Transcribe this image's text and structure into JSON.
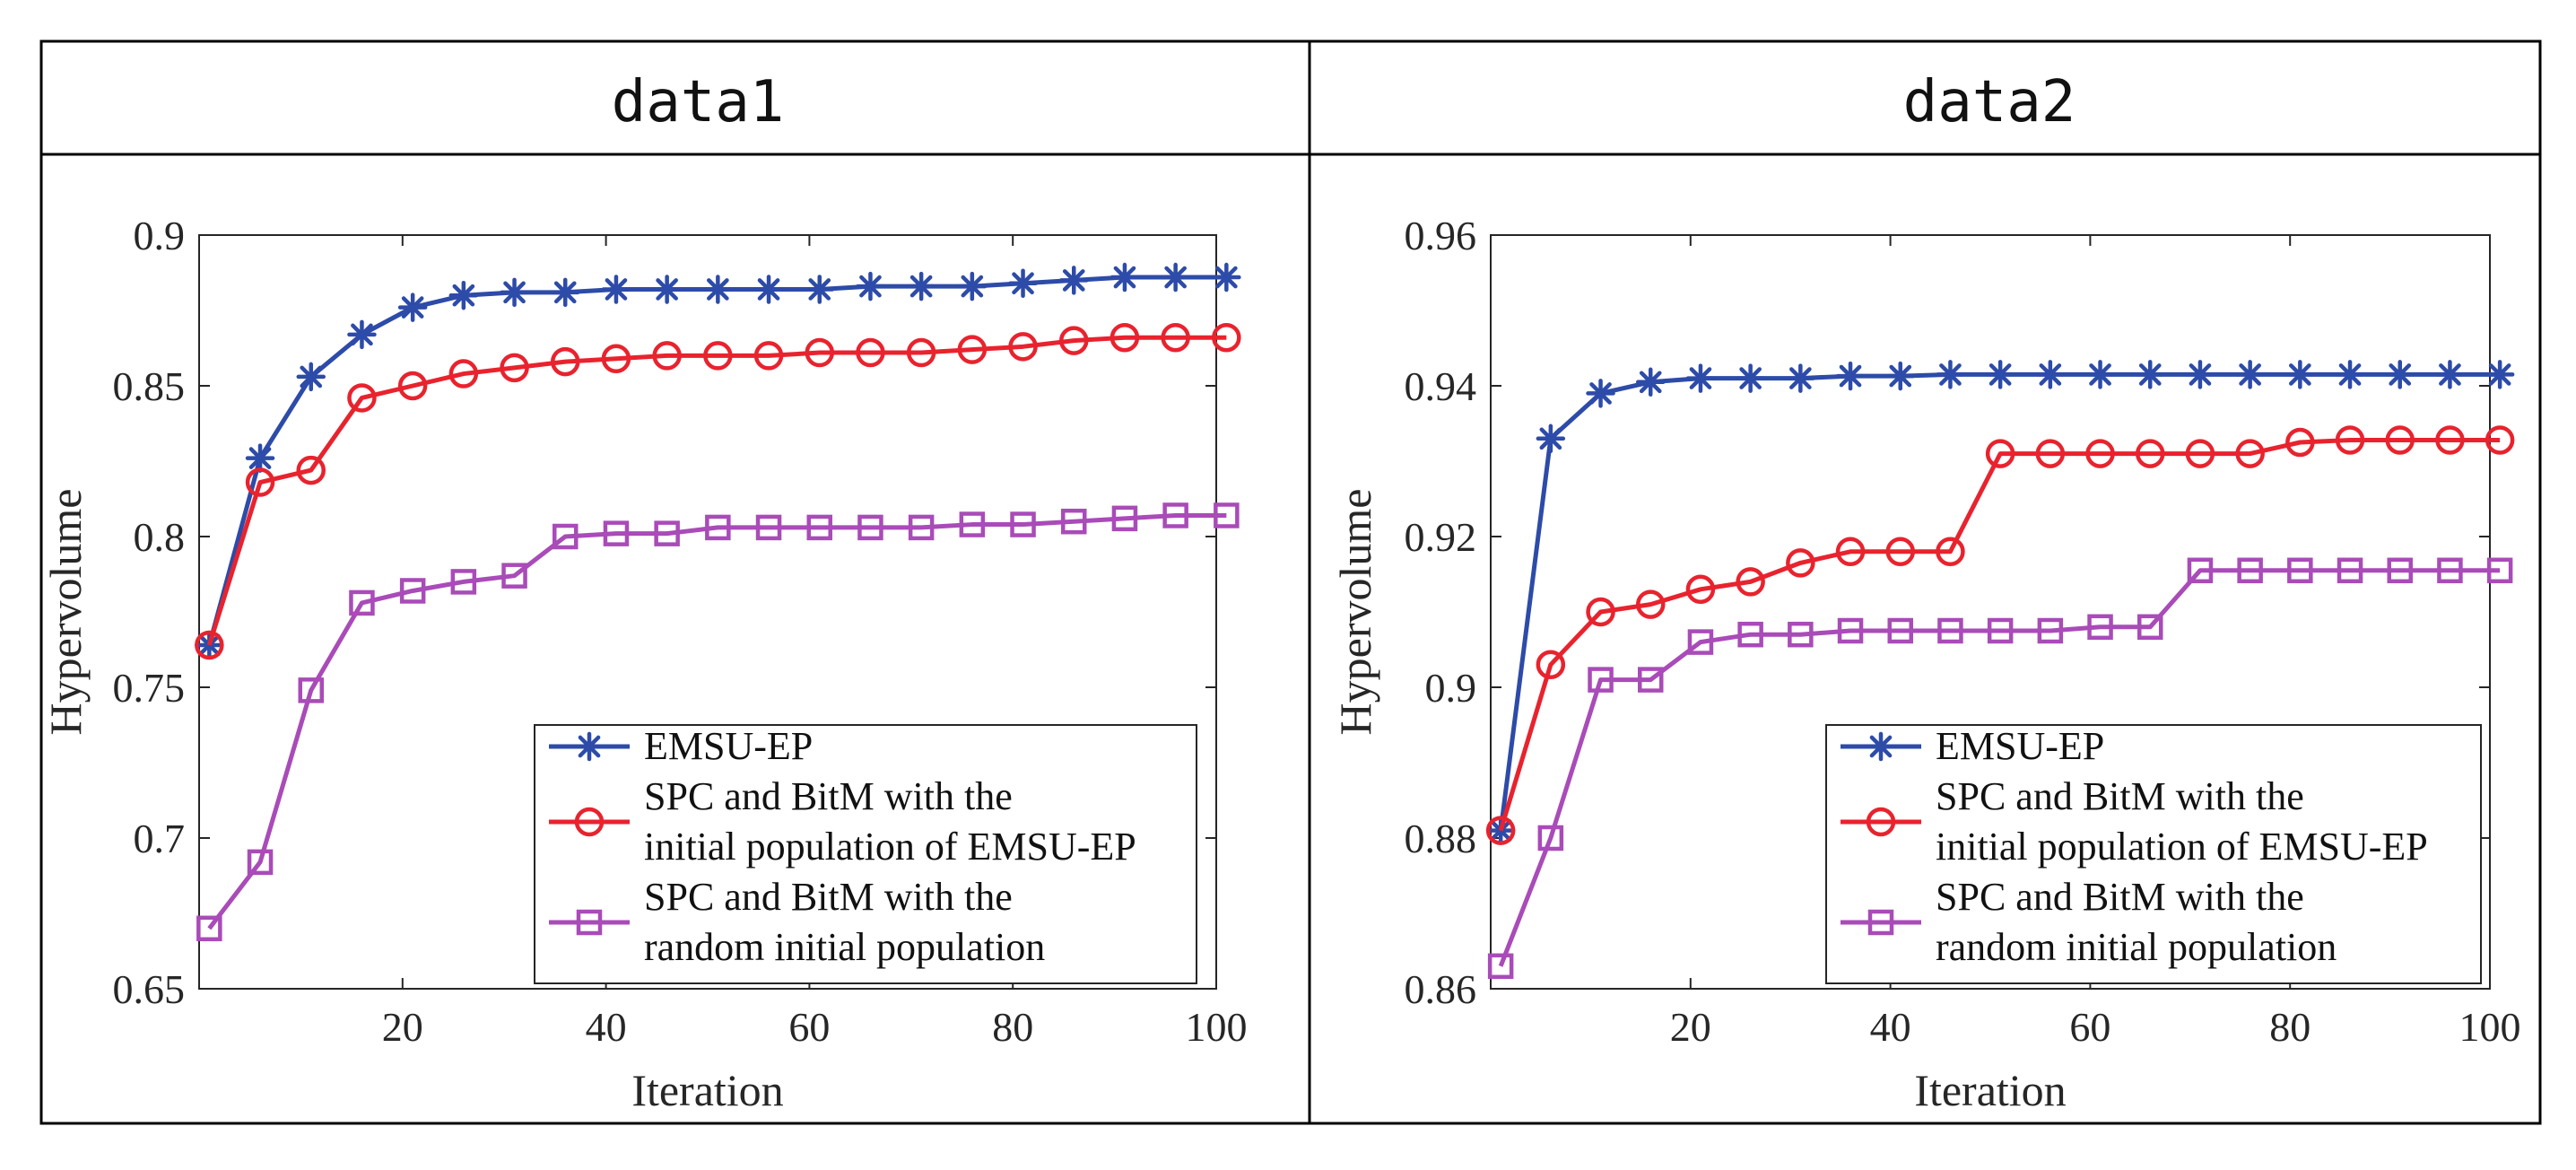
{
  "figure": {
    "line_color": "#000000",
    "background": "#ffffff"
  },
  "series_style": [
    {
      "color": "#2D4BA8",
      "marker": "asterisk"
    },
    {
      "color": "#E8232E",
      "marker": "circle"
    },
    {
      "color": "#A94BB8",
      "marker": "square"
    }
  ],
  "chart_data": [
    {
      "type": "line",
      "panel_title": "data1",
      "xlabel": "Iteration",
      "ylabel": "Hypervolume",
      "xlim": [
        0,
        100
      ],
      "ylim": [
        0.65,
        0.9
      ],
      "xticks": [
        20,
        40,
        60,
        80,
        100
      ],
      "yticks": [
        0.65,
        0.7,
        0.75,
        0.8,
        0.85,
        0.9
      ],
      "ytick_labels": [
        "0.65",
        "0.7",
        "0.75",
        "0.8",
        "0.85",
        "0.9"
      ],
      "legend_position": "bottom-right",
      "x": [
        1,
        6,
        11,
        16,
        21,
        26,
        31,
        36,
        41,
        46,
        51,
        56,
        61,
        66,
        71,
        76,
        81,
        86,
        91,
        96,
        101
      ],
      "series": [
        {
          "name": "EMSU-EP",
          "legend_lines": [
            "EMSU-EP"
          ],
          "values": [
            0.764,
            0.826,
            0.853,
            0.867,
            0.876,
            0.88,
            0.881,
            0.881,
            0.882,
            0.882,
            0.882,
            0.882,
            0.882,
            0.883,
            0.883,
            0.883,
            0.884,
            0.885,
            0.886,
            0.886,
            0.886
          ]
        },
        {
          "name": "SPC and BitM with the initial population of EMSU-EP",
          "legend_lines": [
            "SPC and BitM with the",
            "initial population of EMSU-EP"
          ],
          "values": [
            0.764,
            0.818,
            0.822,
            0.846,
            0.85,
            0.854,
            0.856,
            0.858,
            0.859,
            0.86,
            0.86,
            0.86,
            0.861,
            0.861,
            0.861,
            0.862,
            0.863,
            0.865,
            0.866,
            0.866,
            0.866
          ]
        },
        {
          "name": "SPC and BitM with the random initial population",
          "legend_lines": [
            "SPC and BitM with the",
            "random initial population"
          ],
          "values": [
            0.67,
            0.692,
            0.749,
            0.778,
            0.782,
            0.785,
            0.787,
            0.8,
            0.801,
            0.801,
            0.803,
            0.803,
            0.803,
            0.803,
            0.803,
            0.804,
            0.804,
            0.805,
            0.806,
            0.807,
            0.807
          ]
        }
      ]
    },
    {
      "type": "line",
      "panel_title": "data2",
      "xlabel": "Iteration",
      "ylabel": "Hypervolume",
      "xlim": [
        0,
        100
      ],
      "ylim": [
        0.86,
        0.96
      ],
      "xticks": [
        20,
        40,
        60,
        80,
        100
      ],
      "yticks": [
        0.86,
        0.88,
        0.9,
        0.92,
        0.94,
        0.96
      ],
      "ytick_labels": [
        "0.86",
        "0.88",
        "0.9",
        "0.92",
        "0.94",
        "0.96"
      ],
      "legend_position": "bottom-right",
      "x": [
        1,
        6,
        11,
        16,
        21,
        26,
        31,
        36,
        41,
        46,
        51,
        56,
        61,
        66,
        71,
        76,
        81,
        86,
        91,
        96,
        101
      ],
      "series": [
        {
          "name": "EMSU-EP",
          "legend_lines": [
            "EMSU-EP"
          ],
          "values": [
            0.881,
            0.933,
            0.939,
            0.9405,
            0.941,
            0.941,
            0.941,
            0.9413,
            0.9413,
            0.9415,
            0.9415,
            0.9415,
            0.9415,
            0.9415,
            0.9415,
            0.9415,
            0.9415,
            0.9415,
            0.9415,
            0.9415,
            0.9415
          ]
        },
        {
          "name": "SPC and BitM with the initial population of EMSU-EP",
          "legend_lines": [
            "SPC and BitM with the",
            "initial population of EMSU-EP"
          ],
          "values": [
            0.881,
            0.903,
            0.91,
            0.911,
            0.913,
            0.914,
            0.9165,
            0.918,
            0.918,
            0.918,
            0.931,
            0.931,
            0.931,
            0.931,
            0.931,
            0.931,
            0.9325,
            0.9328,
            0.9328,
            0.9328,
            0.9328
          ]
        },
        {
          "name": "SPC and BitM with the random initial population",
          "legend_lines": [
            "SPC and BitM with the",
            "random initial population"
          ],
          "values": [
            0.863,
            0.88,
            0.901,
            0.901,
            0.906,
            0.907,
            0.907,
            0.9075,
            0.9075,
            0.9075,
            0.9075,
            0.9075,
            0.908,
            0.908,
            0.9155,
            0.9155,
            0.9155,
            0.9155,
            0.9155,
            0.9155,
            0.9155
          ]
        }
      ]
    }
  ]
}
